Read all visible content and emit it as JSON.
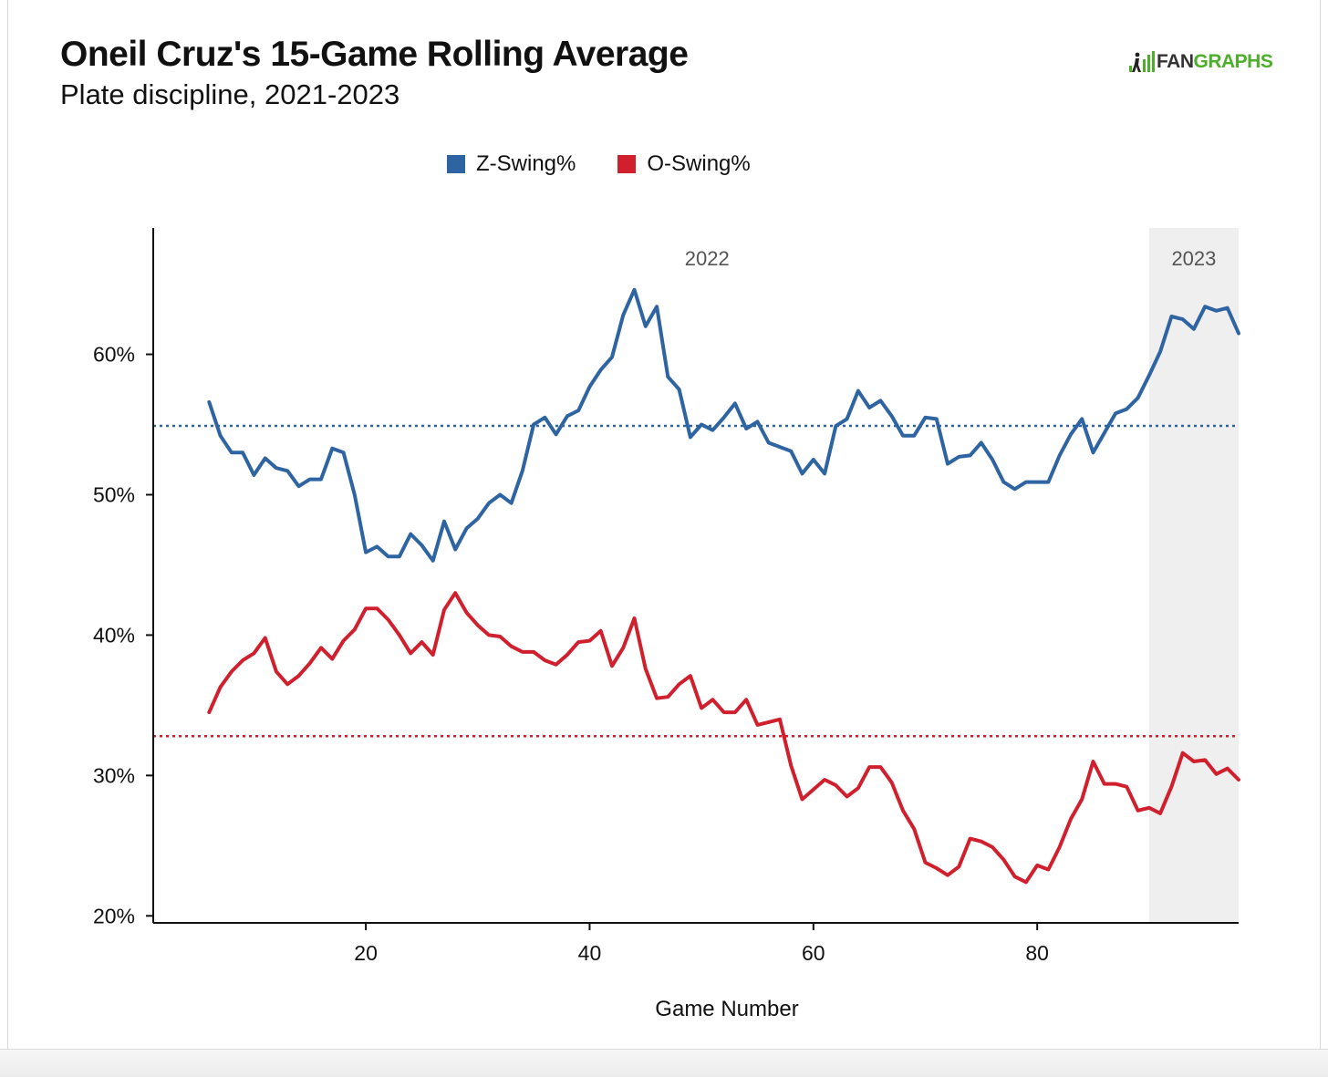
{
  "title": "Oneil Cruz's 15-Game Rolling Average",
  "subtitle": "Plate discipline, 2021-2023",
  "logo": {
    "part1": "FAN",
    "part2": "GRAPHS",
    "icon": "fangraphs-logo-icon"
  },
  "colors": {
    "z_swing": "#2e64a2",
    "o_swing": "#d0202e",
    "shade_2023": "#efefef",
    "logo_green": "#4caf29"
  },
  "chart_data": {
    "type": "line",
    "xlabel": "Game Number",
    "ylabel": "",
    "xlim": [
      1,
      98
    ],
    "ylim": [
      19.5,
      69
    ],
    "x_ticks": [
      20,
      40,
      60,
      80
    ],
    "x_tick_labels": [
      "20",
      "40",
      "60",
      "80"
    ],
    "y_ticks": [
      20,
      30,
      40,
      50,
      60
    ],
    "y_tick_labels": [
      "20%",
      "30%",
      "40%",
      "50%",
      "60%"
    ],
    "grid": false,
    "legend": "top-center",
    "annotations": [
      {
        "text": "2022",
        "x": 50.5
      },
      {
        "text": "2023",
        "x": 94
      }
    ],
    "shaded_region": {
      "x_start": 90,
      "x_end": 98,
      "label": "2023"
    },
    "reference_lines": [
      {
        "series": "Z-Swing%",
        "y": 54.9,
        "style": "dotted"
      },
      {
        "series": "O-Swing%",
        "y": 32.8,
        "style": "dotted"
      }
    ],
    "x": [
      6,
      7,
      8,
      9,
      10,
      11,
      12,
      13,
      14,
      15,
      16,
      17,
      18,
      19,
      20,
      21,
      22,
      23,
      24,
      25,
      26,
      27,
      28,
      29,
      30,
      31,
      32,
      33,
      34,
      35,
      36,
      37,
      38,
      39,
      40,
      41,
      42,
      43,
      44,
      45,
      46,
      47,
      48,
      49,
      50,
      51,
      52,
      53,
      54,
      55,
      56,
      57,
      58,
      59,
      60,
      61,
      62,
      63,
      64,
      65,
      66,
      67,
      68,
      69,
      70,
      71,
      72,
      73,
      74,
      75,
      76,
      77,
      78,
      79,
      80,
      81,
      82,
      83,
      84,
      85,
      86,
      87,
      88,
      89,
      90,
      91,
      92,
      93,
      94,
      95,
      96,
      97,
      98
    ],
    "series": [
      {
        "name": "Z-Swing%",
        "values": [
          56.6,
          54.2,
          53.0,
          53.0,
          51.4,
          52.6,
          51.9,
          51.7,
          50.6,
          51.1,
          51.1,
          53.3,
          53.0,
          50.0,
          45.9,
          46.3,
          45.6,
          45.6,
          47.2,
          46.4,
          45.3,
          48.1,
          46.1,
          47.6,
          48.3,
          49.4,
          50.0,
          49.4,
          51.7,
          55.0,
          55.5,
          54.3,
          55.6,
          56.0,
          57.7,
          58.9,
          59.8,
          62.8,
          64.6,
          62.0,
          63.4,
          58.4,
          57.5,
          54.1,
          55.0,
          54.6,
          55.5,
          56.5,
          54.7,
          55.2,
          53.7,
          53.4,
          53.1,
          51.5,
          52.5,
          51.5,
          54.9,
          55.4,
          57.4,
          56.2,
          56.7,
          55.6,
          54.2,
          54.2,
          55.5,
          55.4,
          52.2,
          52.7,
          52.8,
          53.7,
          52.5,
          50.9,
          50.4,
          50.9,
          50.9,
          50.9,
          52.8,
          54.3,
          55.4,
          53.0,
          54.4,
          55.8,
          56.1,
          56.9,
          58.5,
          60.2,
          62.7,
          62.5,
          61.8,
          63.4,
          63.1,
          63.3,
          61.5
        ]
      },
      {
        "name": "O-Swing%",
        "values": [
          34.5,
          36.3,
          37.4,
          38.2,
          38.7,
          39.8,
          37.4,
          36.5,
          37.1,
          38.0,
          39.1,
          38.3,
          39.6,
          40.4,
          41.9,
          41.9,
          41.1,
          40.0,
          38.7,
          39.5,
          38.6,
          41.8,
          43.0,
          41.6,
          40.7,
          40.0,
          39.9,
          39.2,
          38.8,
          38.8,
          38.2,
          37.9,
          38.6,
          39.5,
          39.6,
          40.3,
          37.8,
          39.1,
          41.2,
          37.6,
          35.5,
          35.6,
          36.5,
          37.1,
          34.8,
          35.4,
          34.5,
          34.5,
          35.4,
          33.6,
          33.8,
          34.0,
          30.7,
          28.3,
          29.0,
          29.7,
          29.3,
          28.5,
          29.1,
          30.6,
          30.6,
          29.5,
          27.5,
          26.2,
          23.8,
          23.4,
          22.9,
          23.5,
          25.5,
          25.3,
          24.9,
          24.0,
          22.8,
          22.4,
          23.6,
          23.3,
          24.9,
          26.9,
          28.3,
          31.0,
          29.4,
          29.4,
          29.2,
          27.5,
          27.7,
          27.3,
          29.2,
          31.6,
          31.0,
          31.1,
          30.1,
          30.5,
          29.7
        ]
      }
    ]
  }
}
